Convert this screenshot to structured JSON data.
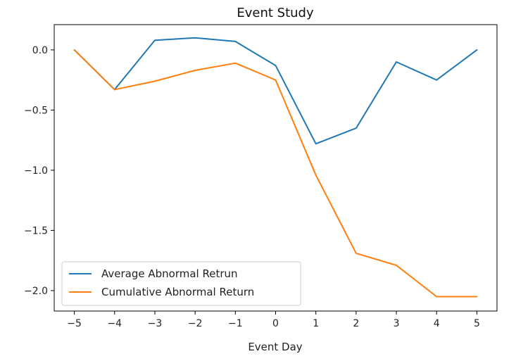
{
  "chart_data": {
    "type": "line",
    "title": "Event Study",
    "xlabel": "Event Day",
    "ylabel": "",
    "x": [
      -5,
      -4,
      -3,
      -2,
      -1,
      0,
      1,
      2,
      3,
      4,
      5
    ],
    "xlim": [
      -5.5,
      5.5
    ],
    "ylim": [
      -2.17,
      0.21
    ],
    "x_ticks": [
      -5,
      -4,
      -3,
      -2,
      -1,
      0,
      1,
      2,
      3,
      4,
      5
    ],
    "x_tick_labels": [
      "−5",
      "−4",
      "−3",
      "−2",
      "−1",
      "0",
      "1",
      "2",
      "3",
      "4",
      "5"
    ],
    "y_ticks": [
      0.0,
      -0.5,
      -1.0,
      -1.5,
      -2.0
    ],
    "y_tick_labels": [
      "0.0",
      "−0.5",
      "−1.0",
      "−1.5",
      "−2.0"
    ],
    "grid": false,
    "legend_position": "lower-left",
    "series": [
      {
        "name": "Average Abnormal Retrun",
        "color": "#1f77b4",
        "values": [
          0.0,
          -0.33,
          0.08,
          0.1,
          0.07,
          -0.13,
          -0.78,
          -0.65,
          -0.1,
          -0.25,
          0.0
        ]
      },
      {
        "name": "Cumulative Abnormal Return",
        "color": "#ff7f0e",
        "values": [
          0.0,
          -0.33,
          -0.26,
          -0.17,
          -0.11,
          -0.25,
          -1.04,
          -1.69,
          -1.79,
          -2.05,
          -2.05
        ]
      }
    ]
  }
}
